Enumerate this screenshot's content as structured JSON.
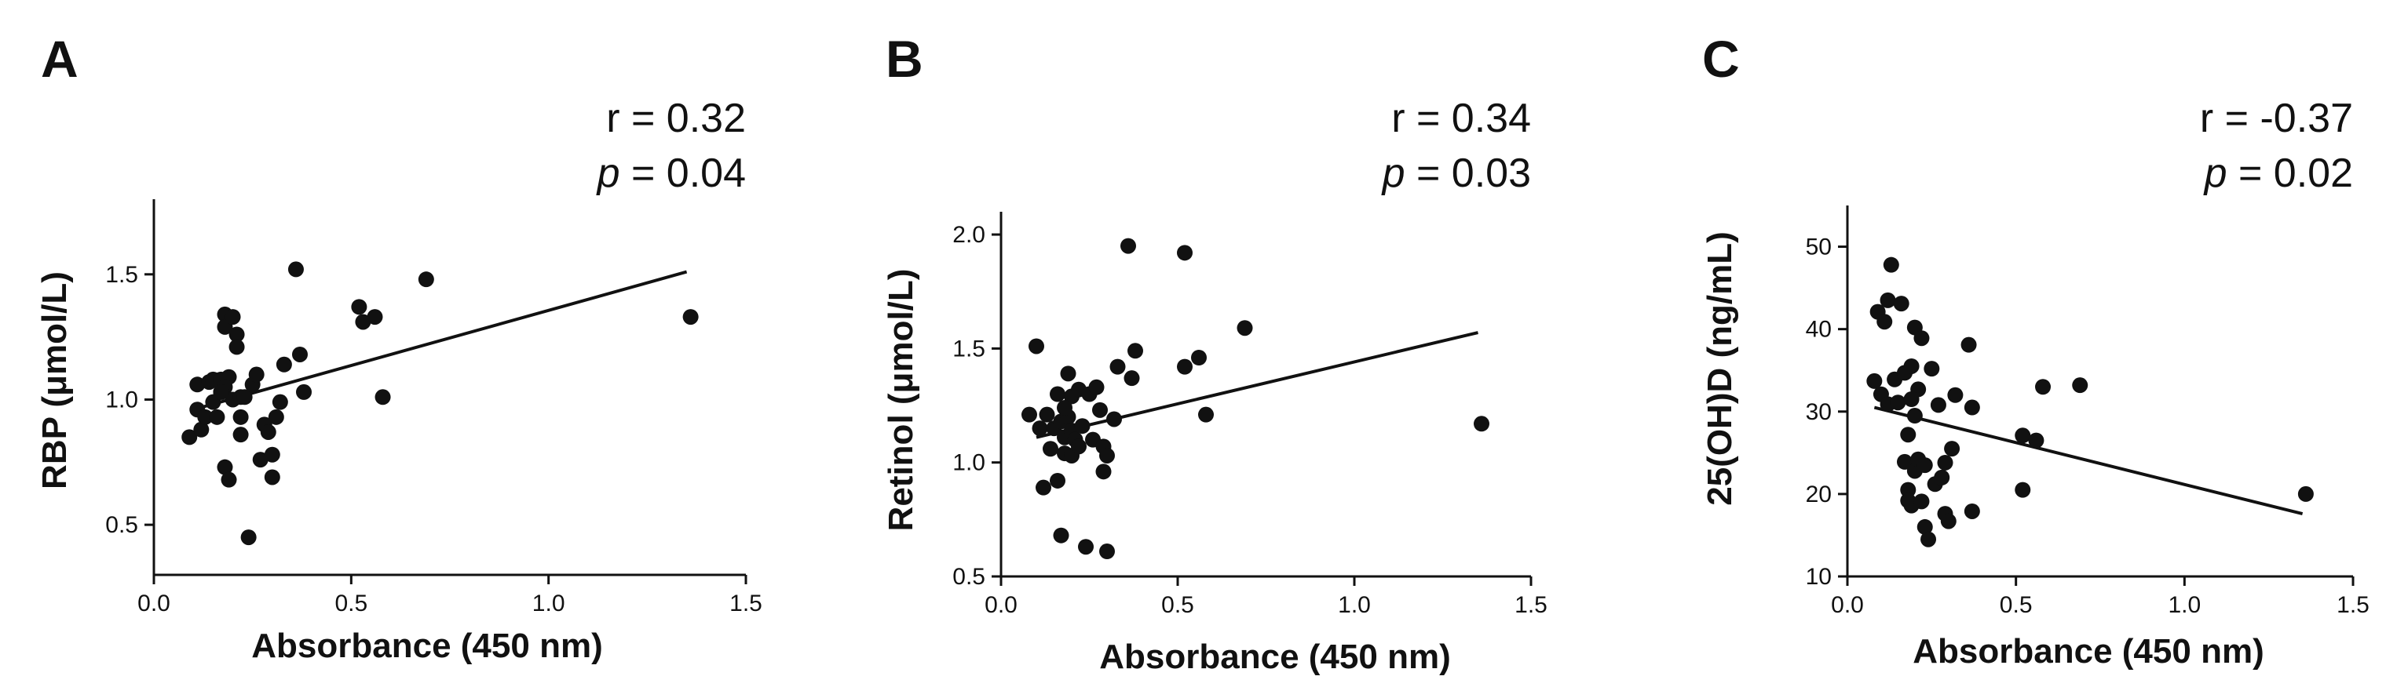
{
  "chart_data": [
    {
      "type": "scatter",
      "panel": "A",
      "title": "",
      "xlabel": "Absorbance (450 nm)",
      "ylabel": "RBP (μmol/L)",
      "xlim": [
        0,
        1.5
      ],
      "ylim": [
        0.3,
        1.8
      ],
      "xticks": [
        0,
        0.5,
        1.0,
        1.5
      ],
      "xtick_labels": [
        "0.0",
        "0.5",
        "1.0",
        "1.5"
      ],
      "yticks": [
        0.5,
        1.0,
        1.5
      ],
      "ytick_labels": [
        "0.5",
        "1.0",
        "1.5"
      ],
      "stats": {
        "r_label": "r = 0.32",
        "p_symbol": "p",
        "p_value": " = 0.04"
      },
      "fit": {
        "x": [
          0.1,
          1.35
        ],
        "y": [
          0.96,
          1.51
        ]
      },
      "points": {
        "x": [
          0.09,
          0.11,
          0.11,
          0.12,
          0.13,
          0.14,
          0.15,
          0.15,
          0.16,
          0.17,
          0.17,
          0.18,
          0.18,
          0.18,
          0.19,
          0.19,
          0.2,
          0.2,
          0.21,
          0.21,
          0.22,
          0.22,
          0.22,
          0.23,
          0.24,
          0.25,
          0.26,
          0.27,
          0.28,
          0.29,
          0.3,
          0.3,
          0.31,
          0.32,
          0.33,
          0.36,
          0.37,
          0.38,
          0.52,
          0.53,
          0.56,
          0.58,
          0.69,
          1.36,
          0.18,
          0.17
        ],
        "y": [
          0.85,
          0.96,
          1.06,
          0.88,
          0.93,
          1.07,
          0.99,
          1.08,
          0.93,
          1.03,
          1.08,
          1.34,
          1.29,
          0.73,
          0.68,
          1.09,
          1.33,
          1.0,
          1.26,
          1.21,
          0.93,
          0.86,
          1.01,
          1.01,
          0.45,
          1.06,
          1.1,
          0.76,
          0.9,
          0.87,
          0.78,
          0.69,
          0.93,
          0.99,
          1.14,
          1.52,
          1.18,
          1.03,
          1.37,
          1.31,
          1.33,
          1.01,
          1.48,
          1.33,
          1.05,
          1.03
        ]
      }
    },
    {
      "type": "scatter",
      "panel": "B",
      "title": "",
      "xlabel": "Absorbance (450 nm)",
      "ylabel": "Retinol (μmol/L)",
      "xlim": [
        0,
        1.5
      ],
      "ylim": [
        0.5,
        2.1
      ],
      "xticks": [
        0,
        0.5,
        1.0,
        1.5
      ],
      "xtick_labels": [
        "0.0",
        "0.5",
        "1.0",
        "1.5"
      ],
      "yticks": [
        0.5,
        1.0,
        1.5,
        2.0
      ],
      "ytick_labels": [
        "0.5",
        "1.0",
        "1.5",
        "2.0"
      ],
      "stats": {
        "r_label": "r = 0.34",
        "p_symbol": "p",
        "p_value": " = 0.03"
      },
      "fit": {
        "x": [
          0.1,
          1.35
        ],
        "y": [
          1.11,
          1.57
        ]
      },
      "points": {
        "x": [
          0.08,
          0.1,
          0.11,
          0.12,
          0.13,
          0.14,
          0.15,
          0.16,
          0.16,
          0.17,
          0.17,
          0.18,
          0.18,
          0.19,
          0.2,
          0.2,
          0.2,
          0.21,
          0.22,
          0.22,
          0.23,
          0.24,
          0.25,
          0.26,
          0.27,
          0.28,
          0.29,
          0.29,
          0.3,
          0.3,
          0.32,
          0.33,
          0.36,
          0.37,
          0.38,
          0.52,
          0.52,
          0.56,
          0.58,
          0.69,
          1.36,
          0.18,
          0.19
        ],
        "y": [
          1.21,
          1.51,
          1.15,
          0.89,
          1.21,
          1.06,
          1.15,
          1.3,
          0.92,
          0.68,
          1.18,
          1.11,
          1.04,
          1.2,
          1.29,
          1.14,
          1.03,
          1.1,
          1.32,
          1.07,
          1.16,
          0.63,
          1.3,
          1.1,
          1.33,
          1.23,
          1.07,
          0.96,
          0.61,
          1.03,
          1.19,
          1.42,
          1.95,
          1.37,
          1.49,
          1.92,
          1.42,
          1.46,
          1.21,
          1.59,
          1.17,
          1.24,
          1.39
        ]
      }
    },
    {
      "type": "scatter",
      "panel": "C",
      "title": "",
      "xlabel": "Absorbance (450 nm)",
      "ylabel": "25(OH)D (ng/mL)",
      "xlim": [
        0,
        1.5
      ],
      "ylim": [
        10,
        55
      ],
      "xticks": [
        0,
        0.5,
        1.0,
        1.5
      ],
      "xtick_labels": [
        "0.0",
        "0.5",
        "1.0",
        "1.5"
      ],
      "yticks": [
        10,
        20,
        30,
        40,
        50
      ],
      "ytick_labels": [
        "10",
        "20",
        "30",
        "40",
        "50"
      ],
      "stats": {
        "r_label": "r = -0.37",
        "p_symbol": "p",
        "p_value": " = 0.02"
      },
      "fit": {
        "x": [
          0.08,
          1.35
        ],
        "y": [
          30.5,
          17.6
        ]
      },
      "points": {
        "x": [
          0.08,
          0.09,
          0.1,
          0.11,
          0.12,
          0.12,
          0.13,
          0.14,
          0.15,
          0.16,
          0.17,
          0.17,
          0.18,
          0.18,
          0.18,
          0.19,
          0.19,
          0.2,
          0.2,
          0.21,
          0.21,
          0.22,
          0.22,
          0.23,
          0.23,
          0.24,
          0.25,
          0.26,
          0.27,
          0.28,
          0.29,
          0.29,
          0.3,
          0.31,
          0.32,
          0.36,
          0.37,
          0.37,
          0.52,
          0.52,
          0.56,
          0.58,
          0.69,
          1.36,
          0.19,
          0.2
        ],
        "y": [
          33.7,
          42.1,
          32.1,
          40.9,
          43.5,
          30.9,
          47.8,
          33.9,
          31.1,
          43.1,
          34.7,
          23.9,
          20.5,
          19.2,
          27.2,
          18.6,
          35.5,
          40.2,
          22.8,
          24.2,
          32.7,
          19.1,
          38.9,
          23.5,
          16.0,
          14.5,
          35.2,
          21.2,
          30.8,
          22.0,
          23.8,
          17.6,
          16.7,
          25.5,
          32.0,
          38.1,
          17.9,
          30.5,
          27.1,
          20.5,
          26.5,
          33.0,
          33.2,
          20.0,
          31.5,
          29.5
        ]
      }
    }
  ]
}
